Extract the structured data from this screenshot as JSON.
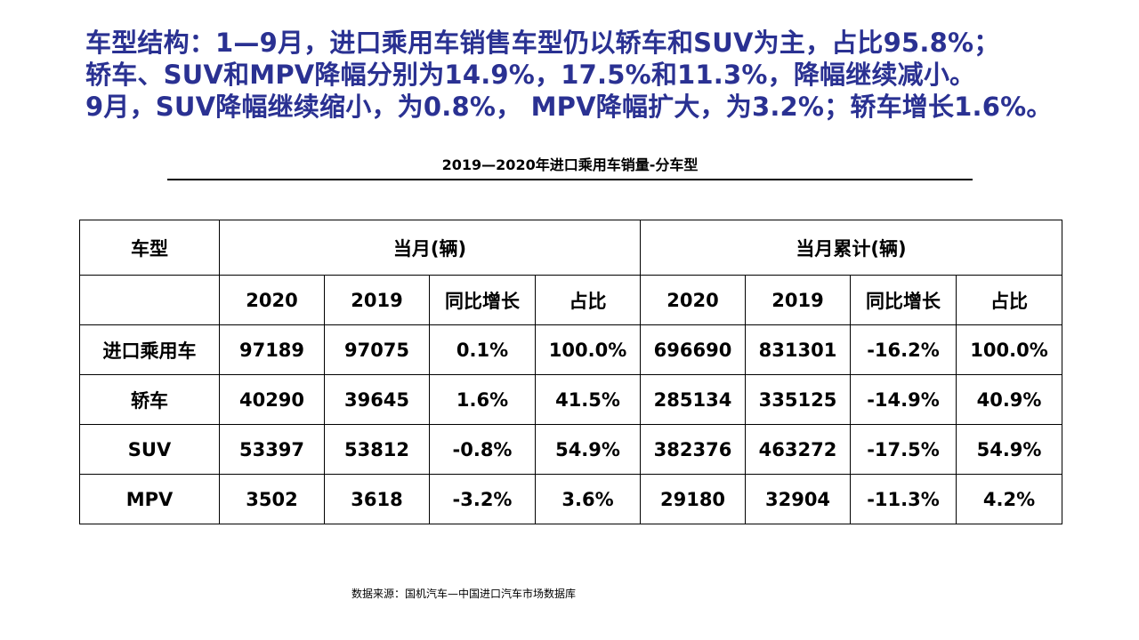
{
  "headline": {
    "line1": "车型结构：1—9月，进口乘用车销售车型仍以轿车和SUV为主，占比95.8%；",
    "line2": "轿车、SUV和MPV降幅分别为14.9%，17.5%和11.3%，降幅继续减小。",
    "line3": "9月，SUV降幅继续缩小，为0.8%， MPV降幅扩大，为3.2%；轿车增长1.6%。"
  },
  "table_title": "2019—2020年进口乘用车销量-分车型",
  "table": {
    "col_type": "车型",
    "group_month": "当月(辆)",
    "group_cumulative": "当月累计(辆)",
    "subheaders": [
      "2020",
      "2019",
      "同比增长",
      "占比",
      "2020",
      "2019",
      "同比增长",
      "占比"
    ],
    "rows": [
      {
        "type": "进口乘用车",
        "cells": [
          "97189",
          "97075",
          "0.1%",
          "100.0%",
          "696690",
          "831301",
          "-16.2%",
          "100.0%"
        ]
      },
      {
        "type": "轿车",
        "cells": [
          "40290",
          "39645",
          "1.6%",
          "41.5%",
          "285134",
          "335125",
          "-14.9%",
          "40.9%"
        ]
      },
      {
        "type": "SUV",
        "cells": [
          "53397",
          "53812",
          "-0.8%",
          "54.9%",
          "382376",
          "463272",
          "-17.5%",
          "54.9%"
        ]
      },
      {
        "type": "MPV",
        "cells": [
          "3502",
          "3618",
          "-3.2%",
          "3.6%",
          "29180",
          "32904",
          "-11.3%",
          "4.2%"
        ]
      }
    ]
  },
  "source": "数据来源：国机汽车—中国进口汽车市场数据库"
}
